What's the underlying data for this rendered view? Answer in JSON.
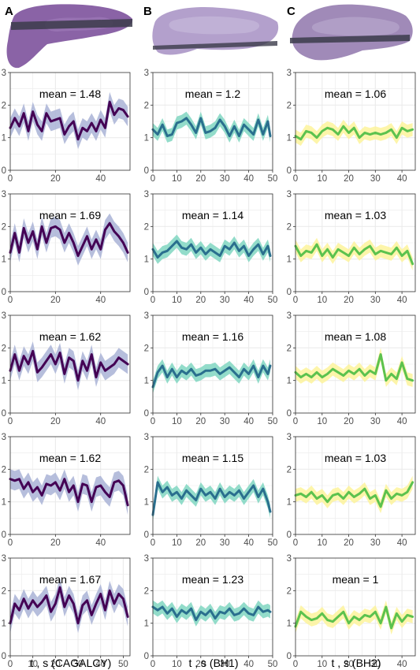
{
  "figure": {
    "panel_letters": [
      "A",
      "B",
      "C"
    ],
    "xlabels": [
      "t , s (CAGALCY)",
      "t , s (BH1)",
      "t , s (BH2)"
    ]
  },
  "colors": {
    "A": {
      "line": "#440154",
      "band": "#a9b3d6"
    },
    "B": {
      "line": "#2a6f8e",
      "band": "#80d6c1"
    },
    "C": {
      "line": "#5cc24e",
      "band": "#fdf39b"
    },
    "grid": "#ebebeb",
    "panel_border": "#333333",
    "tissue": "#8a63a6",
    "cut_band": "#3b3b4a"
  },
  "chart_data": [
    {
      "type": "line",
      "column": "A",
      "row": 1,
      "annotation": "mean = 1.48",
      "xlim": [
        0,
        53
      ],
      "ylim": [
        0,
        3
      ],
      "xticks": [
        0,
        20,
        40
      ],
      "yticks": [
        0,
        1,
        2,
        3
      ],
      "x": [
        0,
        2,
        4,
        6,
        8,
        10,
        12,
        14,
        16,
        18,
        20,
        22,
        24,
        26,
        28,
        30,
        32,
        34,
        36,
        38,
        40,
        42,
        44,
        46,
        48,
        50,
        52
      ],
      "y": [
        1.3,
        1.6,
        1.35,
        1.75,
        1.2,
        1.8,
        1.4,
        1.2,
        1.75,
        1.5,
        1.55,
        1.6,
        1.1,
        1.35,
        1.5,
        0.95,
        1.3,
        1.2,
        1.45,
        1.2,
        1.55,
        1.3,
        2.1,
        1.7,
        1.9,
        1.85,
        1.65
      ],
      "band": 0.3
    },
    {
      "type": "line",
      "column": "B",
      "row": 1,
      "annotation": "mean = 1.2",
      "xlim": [
        0,
        50
      ],
      "ylim": [
        0,
        3
      ],
      "xticks": [
        0,
        10,
        20,
        30,
        40,
        50
      ],
      "yticks": [
        0,
        1,
        2,
        3
      ],
      "x": [
        0,
        2,
        4,
        6,
        8,
        10,
        12,
        14,
        16,
        18,
        20,
        22,
        24,
        26,
        28,
        30,
        32,
        34,
        36,
        38,
        40,
        42,
        44,
        46,
        48,
        49
      ],
      "y": [
        1.25,
        1.1,
        1.4,
        1.05,
        1.1,
        1.45,
        1.5,
        1.6,
        1.4,
        1.15,
        1.6,
        1.15,
        1.2,
        1.3,
        1.55,
        1.35,
        1.05,
        1.35,
        1.05,
        1.4,
        1.25,
        1.1,
        1.55,
        1.1,
        1.5,
        1.05
      ],
      "band": 0.2
    },
    {
      "type": "line",
      "column": "C",
      "row": 1,
      "annotation": "mean = 1.06",
      "xlim": [
        0,
        45
      ],
      "ylim": [
        0,
        3
      ],
      "xticks": [
        0,
        10,
        20,
        30,
        40
      ],
      "yticks": [
        0,
        1,
        2,
        3
      ],
      "x": [
        0,
        2,
        4,
        6,
        8,
        10,
        12,
        14,
        16,
        18,
        20,
        22,
        24,
        26,
        28,
        30,
        32,
        34,
        36,
        38,
        40,
        42,
        44
      ],
      "y": [
        1.05,
        0.95,
        1.2,
        1.15,
        1.0,
        1.2,
        1.3,
        1.25,
        1.1,
        1.35,
        1.15,
        1.3,
        1.0,
        1.15,
        1.1,
        1.15,
        1.1,
        1.15,
        1.25,
        1.0,
        1.3,
        1.2,
        1.25
      ],
      "band": 0.2
    },
    {
      "type": "line",
      "column": "A",
      "row": 2,
      "annotation": "mean = 1.69",
      "xlim": [
        0,
        53
      ],
      "ylim": [
        0,
        3
      ],
      "xticks": [
        0,
        20,
        40
      ],
      "yticks": [
        0,
        1,
        2,
        3
      ],
      "x": [
        0,
        2,
        4,
        6,
        8,
        10,
        12,
        14,
        16,
        18,
        20,
        22,
        24,
        26,
        28,
        30,
        32,
        34,
        36,
        38,
        40,
        42,
        44,
        46,
        48,
        50,
        52
      ],
      "y": [
        1.2,
        1.8,
        1.2,
        1.95,
        1.5,
        1.85,
        1.3,
        2.0,
        1.5,
        1.95,
        2.0,
        1.9,
        1.5,
        1.8,
        1.5,
        1.1,
        1.4,
        1.7,
        1.3,
        1.6,
        1.3,
        1.9,
        2.1,
        1.85,
        1.7,
        1.5,
        1.2
      ],
      "band": 0.3
    },
    {
      "type": "line",
      "column": "B",
      "row": 2,
      "annotation": "mean = 1.14",
      "xlim": [
        0,
        50
      ],
      "ylim": [
        0,
        3
      ],
      "xticks": [
        0,
        10,
        20,
        30,
        40,
        50
      ],
      "yticks": [
        0,
        1,
        2,
        3
      ],
      "x": [
        0,
        2,
        4,
        6,
        8,
        10,
        12,
        14,
        16,
        18,
        20,
        22,
        24,
        26,
        28,
        30,
        32,
        34,
        36,
        38,
        40,
        42,
        44,
        46,
        48,
        49
      ],
      "y": [
        1.3,
        1.05,
        1.2,
        1.25,
        1.4,
        1.55,
        1.35,
        1.3,
        1.45,
        1.2,
        1.35,
        1.15,
        1.3,
        1.2,
        1.1,
        1.4,
        1.3,
        1.5,
        1.25,
        1.4,
        1.1,
        1.3,
        1.45,
        1.15,
        1.4,
        1.1
      ],
      "band": 0.2
    },
    {
      "type": "line",
      "column": "C",
      "row": 2,
      "annotation": "mean = 1.03",
      "xlim": [
        0,
        45
      ],
      "ylim": [
        0,
        3
      ],
      "xticks": [
        0,
        10,
        20,
        30,
        40
      ],
      "yticks": [
        0,
        1,
        2,
        3
      ],
      "x": [
        0,
        2,
        4,
        6,
        8,
        10,
        12,
        14,
        16,
        18,
        20,
        22,
        24,
        26,
        28,
        30,
        32,
        34,
        36,
        38,
        40,
        42,
        44
      ],
      "y": [
        1.4,
        1.1,
        1.25,
        1.2,
        1.45,
        1.1,
        1.3,
        1.05,
        1.3,
        1.2,
        1.1,
        1.35,
        1.15,
        1.3,
        1.4,
        1.15,
        1.25,
        1.2,
        1.15,
        1.35,
        1.1,
        1.25,
        0.85
      ],
      "band": 0.2
    },
    {
      "type": "line",
      "column": "A",
      "row": 3,
      "annotation": "mean = 1.62",
      "xlim": [
        0,
        53
      ],
      "ylim": [
        0,
        3
      ],
      "xticks": [
        0,
        20,
        40
      ],
      "yticks": [
        0,
        1,
        2,
        3
      ],
      "x": [
        0,
        2,
        4,
        6,
        8,
        10,
        12,
        14,
        16,
        18,
        20,
        22,
        24,
        26,
        28,
        30,
        32,
        34,
        36,
        38,
        40,
        42,
        44,
        46,
        48,
        50,
        52
      ],
      "y": [
        1.3,
        1.8,
        1.3,
        1.75,
        1.5,
        1.9,
        1.25,
        1.4,
        1.6,
        1.8,
        1.5,
        1.85,
        1.2,
        1.7,
        1.6,
        1.0,
        1.6,
        1.3,
        1.8,
        1.1,
        1.55,
        1.3,
        1.4,
        1.5,
        1.7,
        1.6,
        1.5
      ],
      "band": 0.3
    },
    {
      "type": "line",
      "column": "B",
      "row": 3,
      "annotation": "mean = 1.16",
      "xlim": [
        0,
        50
      ],
      "ylim": [
        0,
        3
      ],
      "xticks": [
        0,
        10,
        20,
        30,
        40,
        50
      ],
      "yticks": [
        0,
        1,
        2,
        3
      ],
      "x": [
        0,
        2,
        4,
        6,
        8,
        10,
        12,
        14,
        16,
        18,
        20,
        22,
        24,
        26,
        28,
        30,
        32,
        34,
        36,
        38,
        40,
        42,
        44,
        46,
        48,
        49
      ],
      "y": [
        0.8,
        1.25,
        1.45,
        1.1,
        1.35,
        1.1,
        1.3,
        1.2,
        1.35,
        1.15,
        1.2,
        1.3,
        1.3,
        1.35,
        1.2,
        1.3,
        1.4,
        1.25,
        1.1,
        1.35,
        1.2,
        1.45,
        1.1,
        1.45,
        1.2,
        1.45
      ],
      "band": 0.2
    },
    {
      "type": "line",
      "column": "C",
      "row": 3,
      "annotation": "mean = 1.08",
      "xlim": [
        0,
        45
      ],
      "ylim": [
        0,
        3
      ],
      "xticks": [
        0,
        10,
        20,
        30,
        40
      ],
      "yticks": [
        0,
        1,
        2,
        3
      ],
      "x": [
        0,
        2,
        4,
        6,
        8,
        10,
        12,
        14,
        16,
        18,
        20,
        22,
        24,
        26,
        28,
        30,
        32,
        34,
        36,
        38,
        40,
        42,
        44
      ],
      "y": [
        1.25,
        1.1,
        1.2,
        1.1,
        1.25,
        1.1,
        1.2,
        1.35,
        1.25,
        1.15,
        1.3,
        1.2,
        1.35,
        1.15,
        1.3,
        1.2,
        1.8,
        1.0,
        1.2,
        1.05,
        1.55,
        1.05,
        1.0
      ],
      "band": 0.2
    },
    {
      "type": "line",
      "column": "A",
      "row": 4,
      "annotation": "mean = 1.62",
      "xlim": [
        0,
        53
      ],
      "ylim": [
        0,
        3
      ],
      "xticks": [
        0,
        20,
        40
      ],
      "yticks": [
        0,
        1,
        2,
        3
      ],
      "x": [
        0,
        2,
        4,
        6,
        8,
        10,
        12,
        14,
        16,
        18,
        20,
        22,
        24,
        26,
        28,
        30,
        32,
        34,
        36,
        38,
        40,
        42,
        44,
        46,
        48,
        50,
        52
      ],
      "y": [
        1.7,
        1.65,
        1.7,
        1.4,
        1.6,
        1.3,
        1.45,
        1.2,
        1.55,
        1.5,
        1.6,
        1.35,
        1.7,
        1.3,
        1.5,
        1.0,
        1.55,
        1.5,
        1.0,
        1.45,
        1.5,
        1.3,
        1.15,
        1.6,
        1.65,
        1.5,
        0.9
      ],
      "band": 0.3
    },
    {
      "type": "line",
      "column": "B",
      "row": 4,
      "annotation": "mean = 1.15",
      "xlim": [
        0,
        50
      ],
      "ylim": [
        0,
        3
      ],
      "xticks": [
        0,
        10,
        20,
        30,
        40,
        50
      ],
      "yticks": [
        0,
        1,
        2,
        3
      ],
      "x": [
        0,
        2,
        4,
        6,
        8,
        10,
        12,
        14,
        16,
        18,
        20,
        22,
        24,
        26,
        28,
        30,
        32,
        34,
        36,
        38,
        40,
        42,
        44,
        46,
        48,
        49
      ],
      "y": [
        0.6,
        1.6,
        1.3,
        1.45,
        1.2,
        1.3,
        1.1,
        1.35,
        1.2,
        1.05,
        1.4,
        1.2,
        1.3,
        1.1,
        1.4,
        1.15,
        1.3,
        1.2,
        1.35,
        1.1,
        1.3,
        1.5,
        1.15,
        1.4,
        1.0,
        0.7
      ],
      "band": 0.2
    },
    {
      "type": "line",
      "column": "C",
      "row": 4,
      "annotation": "mean = 1.03",
      "xlim": [
        0,
        45
      ],
      "ylim": [
        0,
        3
      ],
      "xticks": [
        0,
        10,
        20,
        30,
        40
      ],
      "yticks": [
        0,
        1,
        2,
        3
      ],
      "x": [
        0,
        2,
        4,
        6,
        8,
        10,
        12,
        14,
        16,
        18,
        20,
        22,
        24,
        26,
        28,
        30,
        32,
        34,
        36,
        38,
        40,
        42,
        44
      ],
      "y": [
        1.2,
        1.25,
        1.15,
        1.3,
        1.1,
        1.2,
        1.0,
        1.2,
        1.25,
        1.1,
        1.3,
        1.15,
        1.25,
        1.4,
        1.1,
        1.2,
        0.85,
        1.35,
        1.1,
        1.25,
        1.2,
        1.3,
        1.6
      ],
      "band": 0.2
    },
    {
      "type": "line",
      "column": "A",
      "row": 5,
      "annotation": "mean = 1.67",
      "xlim": [
        0,
        53
      ],
      "ylim": [
        0,
        3
      ],
      "xticks": [
        0,
        10,
        20,
        30,
        40,
        50
      ],
      "yticks": [
        0,
        1,
        2,
        3
      ],
      "x": [
        0,
        2,
        4,
        6,
        8,
        10,
        12,
        14,
        16,
        18,
        20,
        22,
        24,
        26,
        28,
        30,
        32,
        34,
        36,
        38,
        40,
        42,
        44,
        46,
        48,
        50,
        52
      ],
      "y": [
        1.0,
        1.6,
        1.4,
        1.75,
        1.45,
        1.7,
        1.5,
        1.65,
        1.85,
        1.35,
        1.6,
        2.1,
        1.5,
        1.85,
        1.6,
        1.0,
        1.55,
        1.7,
        1.25,
        1.6,
        1.9,
        1.4,
        2.0,
        1.6,
        1.9,
        1.75,
        1.2
      ],
      "band": 0.3
    },
    {
      "type": "line",
      "column": "B",
      "row": 5,
      "annotation": "mean = 1.23",
      "xlim": [
        0,
        50
      ],
      "ylim": [
        0,
        3
      ],
      "xticks": [
        0,
        10,
        20,
        30,
        40,
        50
      ],
      "yticks": [
        0,
        1,
        2,
        3
      ],
      "x": [
        0,
        2,
        4,
        6,
        8,
        10,
        12,
        14,
        16,
        18,
        20,
        22,
        24,
        26,
        28,
        30,
        32,
        34,
        36,
        38,
        40,
        42,
        44,
        46,
        48,
        49
      ],
      "y": [
        1.5,
        1.4,
        1.5,
        1.3,
        1.45,
        1.2,
        1.4,
        1.3,
        1.45,
        1.1,
        1.35,
        1.25,
        1.4,
        1.15,
        1.35,
        1.3,
        1.45,
        1.25,
        1.3,
        1.45,
        1.3,
        1.25,
        1.5,
        1.35,
        1.4,
        1.35
      ],
      "band": 0.2
    },
    {
      "type": "line",
      "column": "C",
      "row": 5,
      "annotation": "mean = 1",
      "xlim": [
        0,
        45
      ],
      "ylim": [
        0,
        3
      ],
      "xticks": [
        0,
        10,
        20,
        30,
        40
      ],
      "yticks": [
        0,
        1,
        2,
        3
      ],
      "x": [
        0,
        2,
        4,
        6,
        8,
        10,
        12,
        14,
        16,
        18,
        20,
        22,
        24,
        26,
        28,
        30,
        32,
        34,
        36,
        38,
        40,
        42,
        44
      ],
      "y": [
        0.9,
        1.35,
        1.2,
        1.1,
        1.15,
        1.3,
        1.1,
        1.05,
        1.2,
        1.35,
        1.0,
        1.2,
        1.1,
        1.25,
        1.2,
        1.35,
        1.0,
        1.5,
        0.85,
        1.3,
        1.05,
        1.25,
        1.2
      ],
      "band": 0.2
    }
  ]
}
